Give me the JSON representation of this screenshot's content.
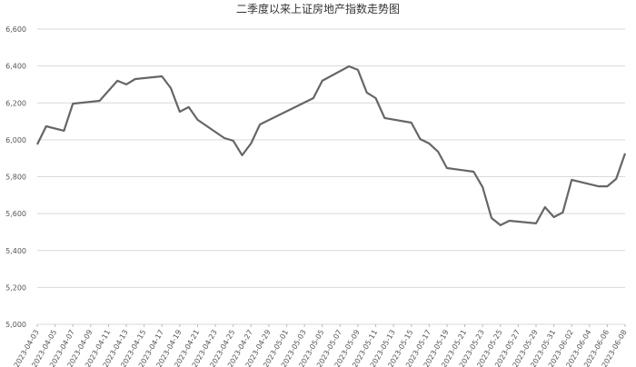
{
  "chart_data": {
    "type": "line",
    "title": "二季度以来上证房地产指数走势图",
    "x": [
      "2023-04-03",
      "2023-04-04",
      "2023-04-06",
      "2023-04-07",
      "2023-04-10",
      "2023-04-12",
      "2023-04-13",
      "2023-04-14",
      "2023-04-17",
      "2023-04-18",
      "2023-04-19",
      "2023-04-20",
      "2023-04-21",
      "2023-04-24",
      "2023-04-25",
      "2023-04-26",
      "2023-04-27",
      "2023-04-28",
      "2023-05-04",
      "2023-05-05",
      "2023-05-08",
      "2023-05-09",
      "2023-05-10",
      "2023-05-11",
      "2023-05-12",
      "2023-05-15",
      "2023-05-16",
      "2023-05-17",
      "2023-05-18",
      "2023-05-19",
      "2023-05-22",
      "2023-05-23",
      "2023-05-24",
      "2023-05-25",
      "2023-05-26",
      "2023-05-29",
      "2023-05-30",
      "2023-05-31",
      "2023-06-01",
      "2023-06-02",
      "2023-06-05",
      "2023-06-06",
      "2023-06-07",
      "2023-06-08"
    ],
    "series": [
      {
        "color": "#666666",
        "values": [
          5975,
          6073,
          6049,
          6196,
          6211,
          6320,
          6300,
          6329,
          6344,
          6280,
          6152,
          6177,
          6108,
          6009,
          5995,
          5916,
          5980,
          6083,
          6226,
          6320,
          6398,
          6379,
          6256,
          6226,
          6118,
          6093,
          6004,
          5980,
          5936,
          5847,
          5827,
          5743,
          5576,
          5537,
          5561,
          5547,
          5635,
          5581,
          5606,
          5783,
          5748,
          5748,
          5788,
          5926
        ]
      }
    ],
    "xlim": [
      "2023-04-03",
      "2023-06-08"
    ],
    "xticks": [
      "2023-04-03",
      "2023-04-05",
      "2023-04-07",
      "2023-04-09",
      "2023-04-11",
      "2023-04-13",
      "2023-04-15",
      "2023-04-17",
      "2023-04-19",
      "2023-04-21",
      "2023-04-23",
      "2023-04-25",
      "2023-04-27",
      "2023-04-29",
      "2023-05-01",
      "2023-05-03",
      "2023-05-05",
      "2023-05-07",
      "2023-05-09",
      "2023-05-11",
      "2023-05-13",
      "2023-05-15",
      "2023-05-17",
      "2023-05-19",
      "2023-05-21",
      "2023-05-23",
      "2023-05-25",
      "2023-05-27",
      "2023-05-29",
      "2023-05-31",
      "2023-06-02",
      "2023-06-04",
      "2023-06-06",
      "2023-06-08"
    ],
    "ylim": [
      5000,
      6600
    ],
    "yticks": [
      {
        "value": 5000,
        "label": "5,000"
      },
      {
        "value": 5200,
        "label": "5,200"
      },
      {
        "value": 5400,
        "label": "5,400"
      },
      {
        "value": 5600,
        "label": "5,600"
      },
      {
        "value": 5800,
        "label": "5,800"
      },
      {
        "value": 6000,
        "label": "6,000"
      },
      {
        "value": 6200,
        "label": "6,200"
      },
      {
        "value": 6400,
        "label": "6,400"
      },
      {
        "value": 6600,
        "label": "6,600"
      }
    ],
    "grid": true
  }
}
